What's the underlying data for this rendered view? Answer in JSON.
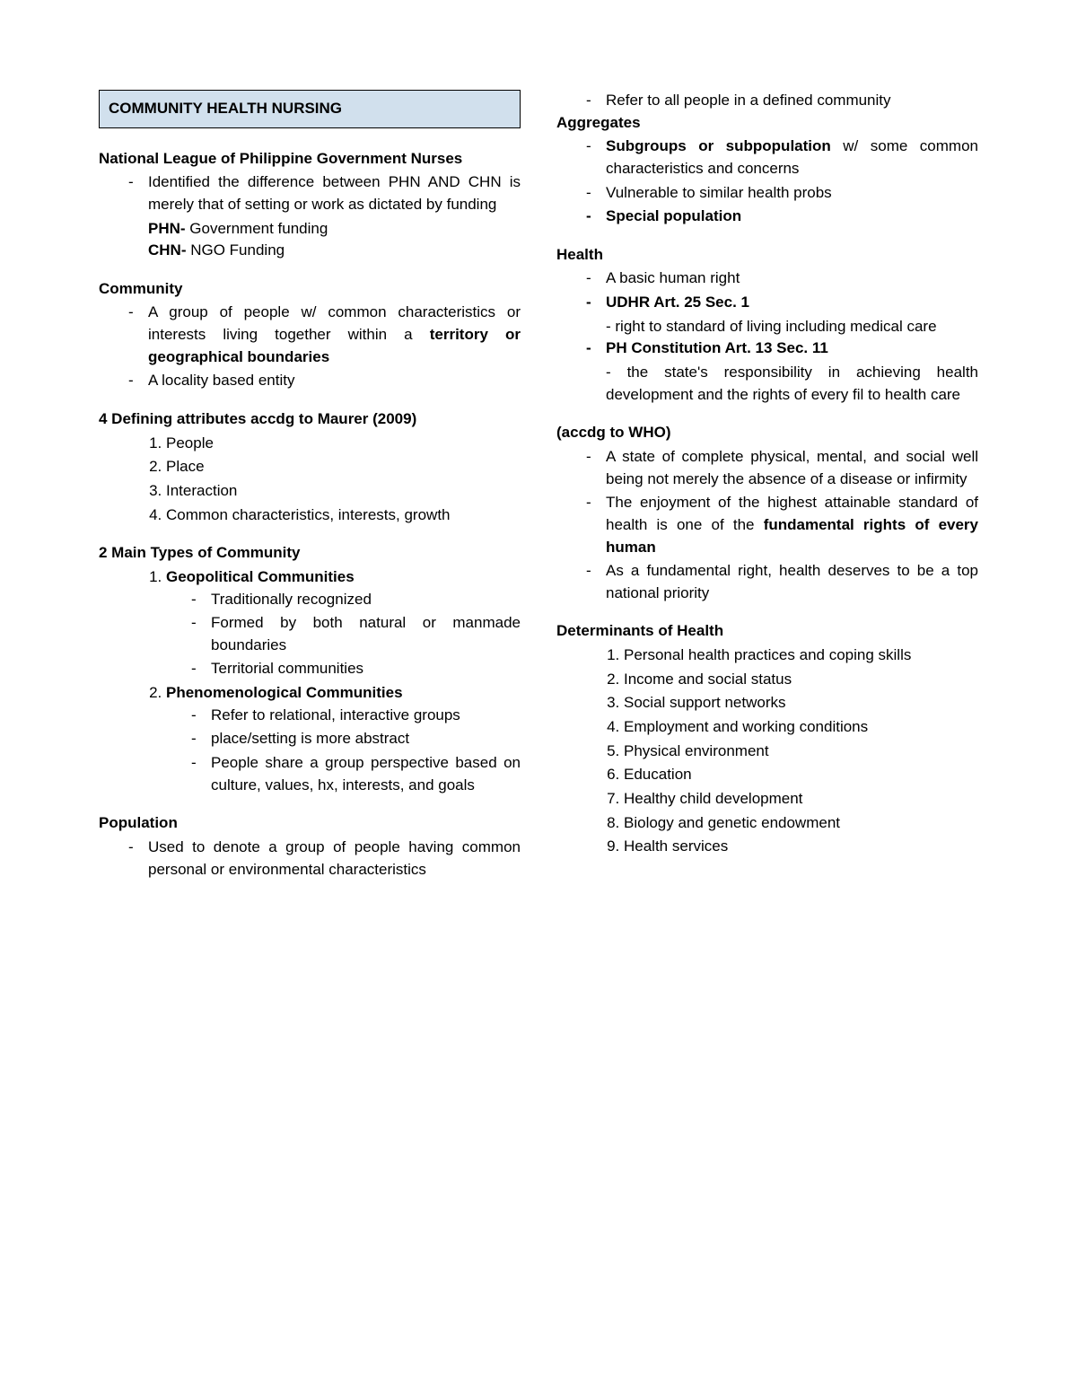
{
  "title": "COMMUNITY HEALTH NURSING",
  "nlpgn": {
    "heading": "National League of Philippine Government Nurses",
    "item1": "Identified the difference between PHN AND CHN is merely that of setting or work as dictated by funding",
    "phn_label": "PHN-",
    "phn_text": " Government funding",
    "chn_label": "CHN-",
    "chn_text": " NGO Funding"
  },
  "community": {
    "heading": "Community",
    "item1a": "A group of people w/ common characteristics or interests living together within a ",
    "item1b": "territory or geographical boundaries",
    "item2": "A locality based entity"
  },
  "maurer": {
    "heading": "4 Defining attributes accdg to Maurer (2009)",
    "a1": "People",
    "a2": "Place",
    "a3": "Interaction",
    "a4": "Common characteristics, interests, growth"
  },
  "types": {
    "heading": "2 Main Types of Community",
    "geo_title": "Geopolitical Communities",
    "geo1": "Traditionally recognized",
    "geo2": "Formed by both natural or manmade boundaries",
    "geo3": "Territorial communities",
    "phe_title": "Phenomenological Communities",
    "phe1": "Refer to relational, interactive groups",
    "phe2": "place/setting is more abstract",
    "phe3": "People share a group perspective based on culture, values, hx, interests, and goals"
  },
  "population": {
    "heading": "Population",
    "item1": "Used to denote a group of people having common personal or environmental characteristics",
    "item2": "Refer to all people in a defined community"
  },
  "aggregates": {
    "heading": "Aggregates",
    "item1a": "Subgroups or subpopulation",
    "item1b": " w/ some common characteristics and concerns",
    "item2": "Vulnerable to similar health probs",
    "item3": "Special population"
  },
  "health": {
    "heading": "Health",
    "item1": "A basic human right",
    "item2": "UDHR Art. 25 Sec. 1",
    "item2_sub": "- right to standard of living including medical care",
    "item3": "PH Constitution Art. 13 Sec. 11",
    "item3_sub": "- the state's responsibility in achieving health development and the rights of every fil to health care"
  },
  "who": {
    "heading": " (accdg to WHO)",
    "item1": "A state of complete physical, mental, and social well being not merely the absence of a disease or infirmity",
    "item2a": "The enjoyment of the highest attainable standard of health is one of the ",
    "item2b": "fundamental rights of every human",
    "item3": "As a fundamental right, health deserves to be a top national priority"
  },
  "determinants": {
    "heading": "Determinants of Health",
    "d1": "Personal health practices and coping skills",
    "d2": "Income and social status",
    "d3": "Social support networks",
    "d4": "Employment and working conditions",
    "d5": "Physical environment",
    "d6": "Education",
    "d7": "Healthy child development",
    "d8": "Biology and genetic endowment",
    "d9": "Health services"
  }
}
